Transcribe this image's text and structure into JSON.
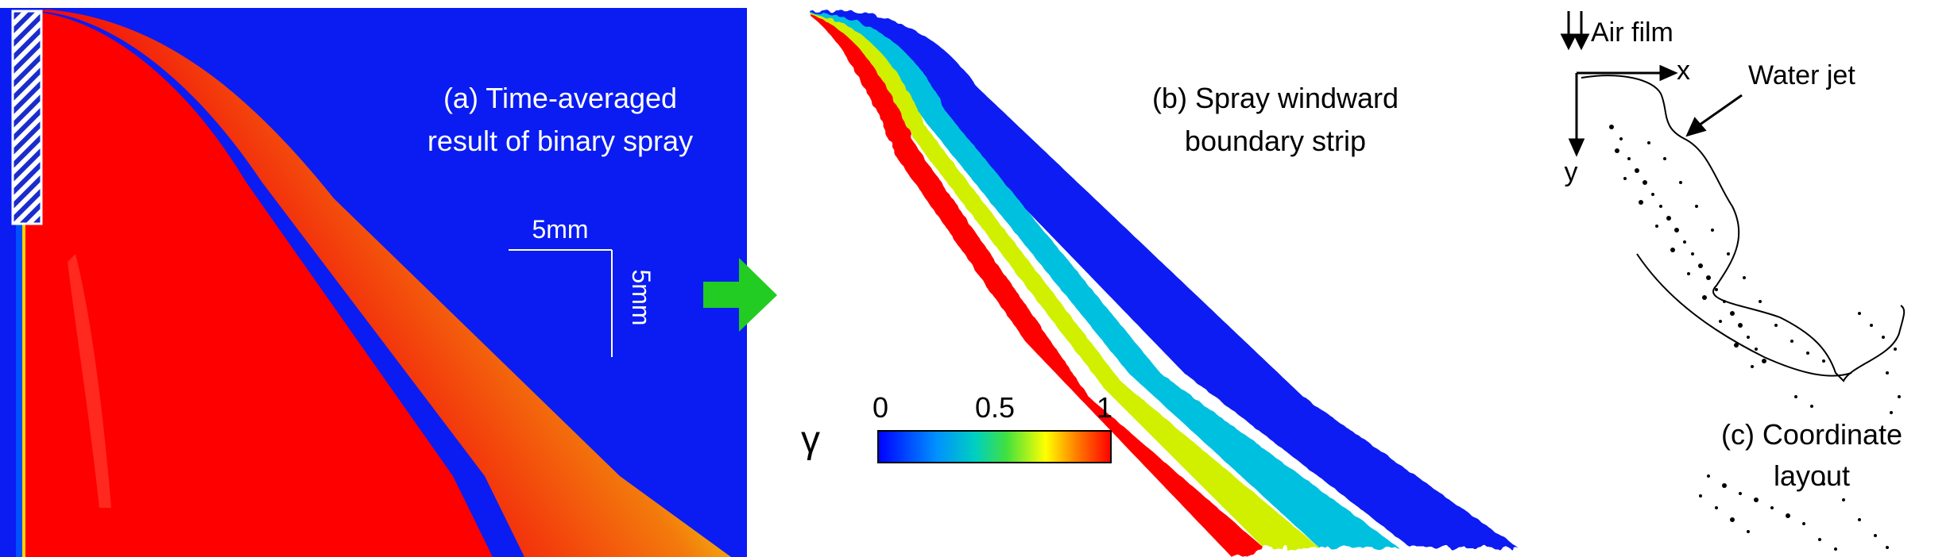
{
  "panel_a": {
    "caption_line1": "(a) Time-averaged",
    "caption_line2": "result of binary spray",
    "scale_horizontal": "5mm",
    "scale_vertical": "5mm"
  },
  "panel_b": {
    "caption_line1": "(b) Spray windward",
    "caption_line2": "boundary strip"
  },
  "colorbar": {
    "symbol": "γ",
    "tick_min": "0",
    "tick_mid": "0.5",
    "tick_max": "1",
    "colors": [
      "#0000ff",
      "#0090ff",
      "#00d0c0",
      "#40e040",
      "#ffff00",
      "#ff8000",
      "#ff0000"
    ]
  },
  "panel_c": {
    "air_film_label": "Air film",
    "x_label": "x",
    "y_label": "y",
    "water_jet_label": "Water jet",
    "caption_line1": "(c) Coordinate",
    "caption_line2": "layout"
  },
  "colors": {
    "background_blue": "#0a1cf2",
    "spray_red": "#ff0000",
    "arrow_green": "#22cc22"
  }
}
